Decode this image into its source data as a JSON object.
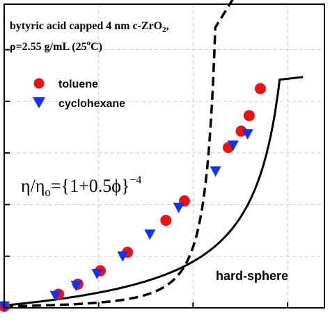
{
  "chart_data": {
    "type": "scatter",
    "annotations": {
      "line1_main": "bytyric acid capped 4 nm c-ZrO",
      "line1_sub": "2",
      "line1_tail": ",",
      "line2_pre": "ρ=2.55 g/mL (25",
      "line2_sup": "o",
      "line2_post": "C)",
      "equation_eta": "η/η",
      "equation_sub": "o",
      "equation_body": "={1+0.5ϕ}",
      "equation_exp": "−4",
      "hard_sphere_label": "hard-sphere"
    },
    "legend": {
      "placement": "top-left",
      "entries": [
        {
          "label": "toluene",
          "marker": "circle",
          "color": "#ee1111"
        },
        {
          "label": "cyclohexane",
          "marker": "triangle-down",
          "color": "#1133ee"
        }
      ]
    },
    "grid": true,
    "xlim": [
      0,
      1
    ],
    "ylim": [
      0,
      1
    ],
    "series": [
      {
        "name": "toluene",
        "color": "#ee1111",
        "points": [
          [
            0.0,
            0.005
          ],
          [
            0.17,
            0.045
          ],
          [
            0.23,
            0.078
          ],
          [
            0.3,
            0.122
          ],
          [
            0.385,
            0.183
          ],
          [
            0.505,
            0.288
          ],
          [
            0.563,
            0.352
          ],
          [
            0.7,
            0.528
          ],
          [
            0.74,
            0.582
          ],
          [
            0.765,
            0.633
          ],
          [
            0.8,
            0.722
          ]
        ]
      },
      {
        "name": "cyclohexane",
        "color": "#1133ee",
        "points": [
          [
            0.0,
            0.005
          ],
          [
            0.16,
            0.04
          ],
          [
            0.225,
            0.073
          ],
          [
            0.29,
            0.112
          ],
          [
            0.37,
            0.17
          ],
          [
            0.455,
            0.242
          ],
          [
            0.545,
            0.33
          ],
          [
            0.66,
            0.45
          ],
          [
            0.715,
            0.535
          ],
          [
            0.76,
            0.572
          ]
        ]
      }
    ]
  }
}
